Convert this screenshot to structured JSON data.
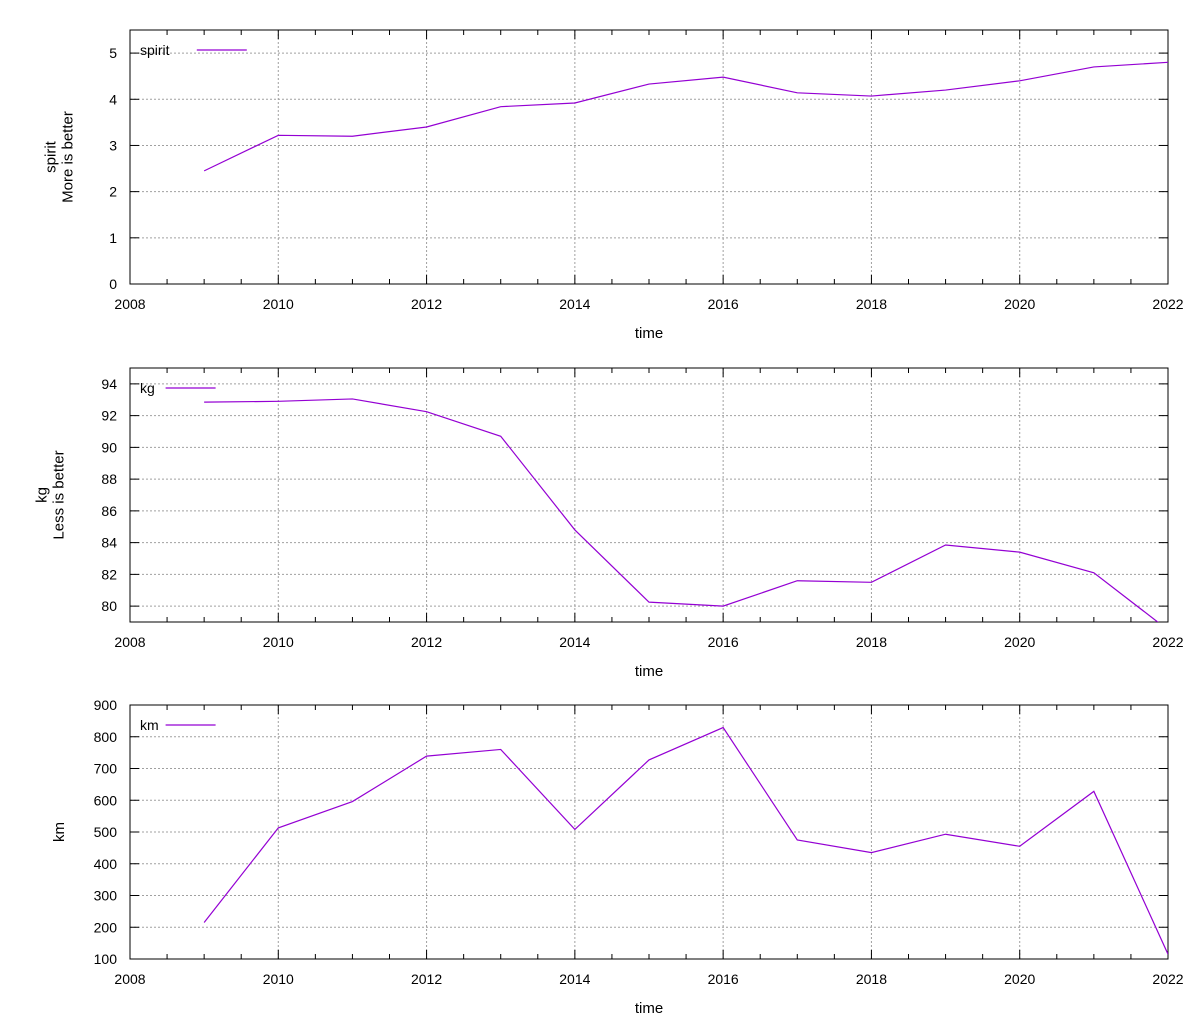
{
  "chart_data": [
    {
      "type": "line",
      "xlabel": "time",
      "ylabel": [
        "spirit",
        "More is better"
      ],
      "xlim": [
        2008,
        2022
      ],
      "ylim": [
        0,
        5.5
      ],
      "x_ticks": [
        2008,
        2010,
        2012,
        2014,
        2016,
        2018,
        2020,
        2022
      ],
      "y_ticks": [
        0,
        1,
        2,
        3,
        4,
        5
      ],
      "grid": true,
      "legend_position": "top-left",
      "series": [
        {
          "name": "spirit",
          "color": "#9400d3",
          "x": [
            2009,
            2010,
            2011,
            2012,
            2013,
            2014,
            2015,
            2016,
            2017,
            2018,
            2019,
            2020,
            2021,
            2022
          ],
          "y": [
            2.45,
            3.22,
            3.2,
            3.4,
            3.84,
            3.92,
            4.33,
            4.48,
            4.14,
            4.07,
            4.2,
            4.4,
            4.7,
            4.8
          ]
        }
      ]
    },
    {
      "type": "line",
      "xlabel": "time",
      "ylabel": [
        "kg",
        "Less is better"
      ],
      "xlim": [
        2008,
        2022
      ],
      "ylim": [
        79,
        95
      ],
      "x_ticks": [
        2008,
        2010,
        2012,
        2014,
        2016,
        2018,
        2020,
        2022
      ],
      "y_ticks": [
        80,
        82,
        84,
        86,
        88,
        90,
        92,
        94
      ],
      "grid": true,
      "legend_position": "top-left",
      "series": [
        {
          "name": "kg",
          "color": "#9400d3",
          "x": [
            2009,
            2010,
            2011,
            2012,
            2013,
            2014,
            2015,
            2016,
            2017,
            2018,
            2019,
            2020,
            2021,
            2022
          ],
          "y": [
            92.85,
            92.9,
            93.05,
            92.25,
            90.7,
            84.8,
            80.25,
            80,
            81.6,
            81.5,
            83.85,
            83.4,
            82.1,
            78.5
          ]
        }
      ]
    },
    {
      "type": "line",
      "xlabel": "time",
      "ylabel": [
        "km"
      ],
      "xlim": [
        2008,
        2022
      ],
      "ylim": [
        100,
        900
      ],
      "x_ticks": [
        2008,
        2010,
        2012,
        2014,
        2016,
        2018,
        2020,
        2022
      ],
      "y_ticks": [
        100,
        200,
        300,
        400,
        500,
        600,
        700,
        800,
        900
      ],
      "grid": true,
      "legend_position": "top-left",
      "series": [
        {
          "name": "km",
          "color": "#9400d3",
          "x": [
            2009,
            2010,
            2011,
            2012,
            2013,
            2014,
            2015,
            2016,
            2017,
            2018,
            2019,
            2020,
            2021,
            2022
          ],
          "y": [
            215,
            513,
            596,
            739,
            760,
            508,
            727,
            829,
            475,
            435,
            493,
            455,
            628,
            115
          ]
        }
      ]
    }
  ]
}
